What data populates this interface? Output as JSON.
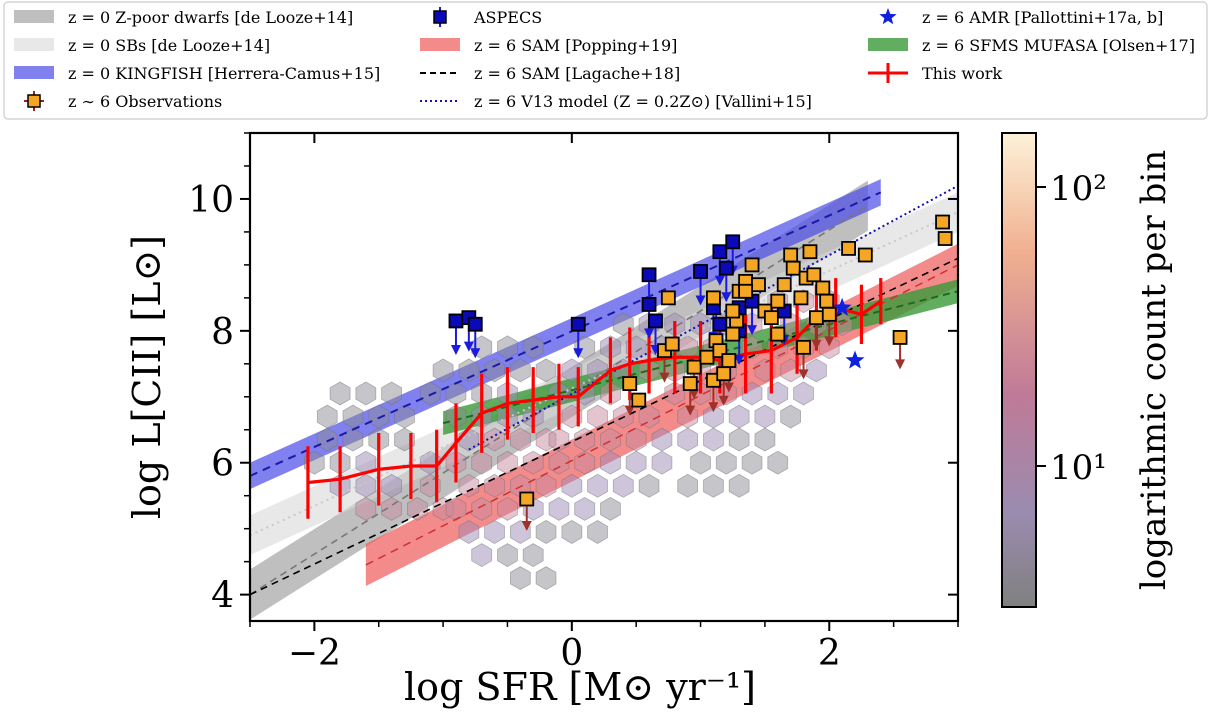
{
  "chart_data": {
    "type": "scatter",
    "xlabel": "log SFR [M⊙ yr⁻¹]",
    "ylabel": "log L[CII] [L⊙]",
    "colorbar_label": "logarithmic count per bin",
    "colorbar_ticks": [
      "10²",
      "10¹"
    ],
    "xlim": [
      -2.5,
      3.0
    ],
    "ylim": [
      3.6,
      11.0
    ],
    "xticks": [
      -2,
      0,
      2
    ],
    "xtick_labels": [
      "−2",
      "0",
      "2"
    ],
    "yticks": [
      4,
      6,
      8,
      10
    ],
    "ytick_labels": [
      "4",
      "6",
      "8",
      "10"
    ],
    "colors": {
      "kingfish": "#4a4ae8",
      "popping": "#f05a5a",
      "olsen": "#3a9a3a",
      "this_work": "#ff0000",
      "observations": "#f5a623",
      "aspecs": "#0a0ab8",
      "amr": "#1020e0",
      "uplimit": "#a0302a"
    },
    "legend": {
      "placement": "top",
      "entries": [
        {
          "key": "dwarfs",
          "label": "z = 0 Z-poor dwarfs [de Looze+14]"
        },
        {
          "key": "sbs",
          "label": "z = 0 SBs [de Looze+14]"
        },
        {
          "key": "kingfish",
          "label": "z = 0 KINGFISH [Herrera-Camus+15]"
        },
        {
          "key": "observations",
          "label": "z ∼ 6 Observations"
        },
        {
          "key": "aspecs",
          "label": "ASPECS"
        },
        {
          "key": "popping",
          "label": "z = 6 SAM [Popping+19]"
        },
        {
          "key": "lagache",
          "label": "z = 6 SAM [Lagache+18]"
        },
        {
          "key": "vallini",
          "label": "z = 6 V13 model (Z = 0.2Z⊙) [Vallini+15]"
        },
        {
          "key": "amr",
          "label": "z = 6 AMR [Pallottini+17a, b]"
        },
        {
          "key": "olsen",
          "label": "z = 6 SFMS MUFASA [Olsen+17]"
        },
        {
          "key": "this_work",
          "label": "This work"
        }
      ]
    },
    "relations": [
      {
        "key": "dwarfs",
        "x": [
          -2.5,
          2.3
        ],
        "y": [
          4.0,
          9.9
        ],
        "sigma": 0.38
      },
      {
        "key": "sbs",
        "x": [
          -2.5,
          3.0
        ],
        "y": [
          4.9,
          9.8
        ],
        "sigma": 0.3
      },
      {
        "key": "kingfish",
        "x": [
          -2.5,
          2.4
        ],
        "y": [
          5.8,
          10.1
        ],
        "sigma": 0.2
      },
      {
        "key": "popping",
        "x": [
          -1.6,
          3.0
        ],
        "y": [
          4.45,
          9.0
        ],
        "sigma": 0.32
      },
      {
        "key": "lagache",
        "x": [
          -2.5,
          3.0
        ],
        "y": [
          4.0,
          9.1
        ]
      },
      {
        "key": "vallini",
        "x": [
          -0.8,
          3.0
        ],
        "y": [
          6.2,
          10.2
        ]
      },
      {
        "key": "olsen",
        "x": [
          -1.0,
          3.0
        ],
        "y": [
          6.6,
          8.6
        ],
        "sigma": 0.18
      }
    ],
    "this_work": {
      "x": [
        -2.05,
        -1.8,
        -1.5,
        -1.25,
        -1.05,
        -0.9,
        -0.7,
        -0.5,
        -0.3,
        -0.1,
        0.05,
        0.3,
        0.45,
        0.6,
        0.8,
        1.0,
        1.15,
        1.35,
        1.55,
        1.75,
        1.9,
        2.05,
        2.25,
        2.4
      ],
      "y": [
        5.7,
        5.75,
        5.9,
        5.95,
        5.95,
        6.3,
        6.75,
        6.9,
        6.95,
        7.0,
        7.0,
        7.4,
        7.5,
        7.55,
        7.6,
        7.6,
        7.55,
        7.65,
        7.7,
        7.9,
        8.2,
        8.35,
        8.25,
        8.45
      ],
      "err": [
        0.55,
        0.5,
        0.55,
        0.5,
        0.55,
        0.6,
        0.6,
        0.55,
        0.5,
        0.5,
        0.45,
        0.5,
        0.55,
        0.5,
        0.55,
        0.55,
        0.5,
        0.6,
        0.65,
        0.55,
        0.5,
        0.45,
        0.45,
        0.35
      ]
    },
    "observations": [
      {
        "x": 0.45,
        "y": 7.2,
        "up": true
      },
      {
        "x": 0.52,
        "y": 6.95
      },
      {
        "x": 0.72,
        "y": 7.7,
        "up": true
      },
      {
        "x": 0.78,
        "y": 7.8
      },
      {
        "x": 0.75,
        "y": 8.5
      },
      {
        "x": 0.92,
        "y": 7.2,
        "up": true
      },
      {
        "x": 0.95,
        "y": 7.45,
        "up": true
      },
      {
        "x": 1.05,
        "y": 7.6
      },
      {
        "x": 1.1,
        "y": 7.25,
        "up": true
      },
      {
        "x": 1.12,
        "y": 7.85
      },
      {
        "x": 1.15,
        "y": 7.7,
        "up": true
      },
      {
        "x": 1.18,
        "y": 7.35,
        "up": true
      },
      {
        "x": 1.22,
        "y": 7.55,
        "up": true
      },
      {
        "x": 1.25,
        "y": 7.95
      },
      {
        "x": 1.28,
        "y": 8.15
      },
      {
        "x": 1.3,
        "y": 8.6
      },
      {
        "x": 1.35,
        "y": 8.75
      },
      {
        "x": 1.4,
        "y": 9.0
      },
      {
        "x": 1.45,
        "y": 8.7
      },
      {
        "x": 1.5,
        "y": 8.3
      },
      {
        "x": 1.55,
        "y": 8.2
      },
      {
        "x": 1.6,
        "y": 8.45
      },
      {
        "x": 1.65,
        "y": 8.7
      },
      {
        "x": 1.7,
        "y": 9.15
      },
      {
        "x": 1.72,
        "y": 8.95
      },
      {
        "x": 1.78,
        "y": 8.5
      },
      {
        "x": 1.82,
        "y": 8.8
      },
      {
        "x": 1.85,
        "y": 9.2
      },
      {
        "x": 1.88,
        "y": 8.85
      },
      {
        "x": 1.95,
        "y": 8.65
      },
      {
        "x": 1.98,
        "y": 8.45
      },
      {
        "x": 1.8,
        "y": 7.75,
        "up": true
      },
      {
        "x": 1.9,
        "y": 8.2,
        "up": true
      },
      {
        "x": 2.0,
        "y": 8.25,
        "up": true
      },
      {
        "x": 2.15,
        "y": 9.25
      },
      {
        "x": 2.28,
        "y": 9.15
      },
      {
        "x": 2.88,
        "y": 9.65
      },
      {
        "x": 2.9,
        "y": 9.4
      },
      {
        "x": 2.55,
        "y": 7.9,
        "up": true
      },
      {
        "x": -0.35,
        "y": 5.45,
        "up": true
      },
      {
        "x": 1.35,
        "y": 8.6
      },
      {
        "x": 1.1,
        "y": 8.5
      },
      {
        "x": 1.6,
        "y": 7.95
      },
      {
        "x": 1.25,
        "y": 8.3
      }
    ],
    "aspecs": [
      {
        "x": -0.9,
        "y": 8.15
      },
      {
        "x": -0.8,
        "y": 8.2
      },
      {
        "x": -0.75,
        "y": 8.1
      },
      {
        "x": 0.05,
        "y": 8.1
      },
      {
        "x": 0.6,
        "y": 8.85
      },
      {
        "x": 0.6,
        "y": 8.4
      },
      {
        "x": 0.65,
        "y": 8.15
      },
      {
        "x": 1.0,
        "y": 8.9
      },
      {
        "x": 1.1,
        "y": 8.35
      },
      {
        "x": 1.15,
        "y": 9.2
      },
      {
        "x": 1.25,
        "y": 9.35
      },
      {
        "x": 1.2,
        "y": 8.95
      },
      {
        "x": 1.3,
        "y": 8.35
      },
      {
        "x": 1.4,
        "y": 8.45
      },
      {
        "x": 1.65,
        "y": 8.3
      },
      {
        "x": 1.15,
        "y": 8.1
      },
      {
        "x": 1.3,
        "y": 8.0
      }
    ],
    "amr": [
      {
        "x": 2.1,
        "y": 8.35
      },
      {
        "x": 2.2,
        "y": 7.55
      }
    ],
    "hexbins": [
      {
        "x": -2.0,
        "y": 6.0
      },
      {
        "x": -1.8,
        "y": 6.0
      },
      {
        "x": -1.6,
        "y": 6.0
      },
      {
        "x": -1.9,
        "y": 6.35
      },
      {
        "x": -1.7,
        "y": 6.35
      },
      {
        "x": -1.5,
        "y": 6.35
      },
      {
        "x": -1.3,
        "y": 6.35
      },
      {
        "x": -1.9,
        "y": 6.7
      },
      {
        "x": -1.7,
        "y": 6.7
      },
      {
        "x": -1.5,
        "y": 6.7
      },
      {
        "x": -1.3,
        "y": 6.7
      },
      {
        "x": -1.8,
        "y": 5.65
      },
      {
        "x": -1.6,
        "y": 5.65
      },
      {
        "x": -1.4,
        "y": 5.65
      },
      {
        "x": -1.8,
        "y": 7.05
      },
      {
        "x": -1.6,
        "y": 7.05
      },
      {
        "x": -1.4,
        "y": 7.05
      },
      {
        "x": -1.4,
        "y": 5.3
      },
      {
        "x": -1.2,
        "y": 5.3
      },
      {
        "x": -1.6,
        "y": 5.3
      },
      {
        "x": -1.1,
        "y": 6.0
      },
      {
        "x": -1.1,
        "y": 5.65
      },
      {
        "x": -1.0,
        "y": 5.3
      },
      {
        "x": -1.1,
        "y": 7.05
      },
      {
        "x": -1.0,
        "y": 7.4
      },
      {
        "x": -0.8,
        "y": 7.4
      },
      {
        "x": -0.9,
        "y": 7.05
      },
      {
        "x": -0.7,
        "y": 7.05
      },
      {
        "x": -0.5,
        "y": 7.05
      },
      {
        "x": -0.6,
        "y": 7.4
      },
      {
        "x": -0.4,
        "y": 7.4
      },
      {
        "x": -0.2,
        "y": 7.4
      },
      {
        "x": -0.5,
        "y": 7.75
      },
      {
        "x": -0.3,
        "y": 7.75
      },
      {
        "x": -0.7,
        "y": 7.75
      },
      {
        "x": -0.9,
        "y": 6.7
      },
      {
        "x": -0.7,
        "y": 6.7
      },
      {
        "x": -0.5,
        "y": 6.7
      },
      {
        "x": -0.3,
        "y": 6.7
      },
      {
        "x": -0.8,
        "y": 6.35
      },
      {
        "x": -0.6,
        "y": 6.35
      },
      {
        "x": -0.4,
        "y": 6.35
      },
      {
        "x": -0.2,
        "y": 6.35
      },
      {
        "x": -0.9,
        "y": 6.0
      },
      {
        "x": -0.7,
        "y": 6.0
      },
      {
        "x": -0.5,
        "y": 6.0
      },
      {
        "x": -0.3,
        "y": 6.0
      },
      {
        "x": -0.8,
        "y": 5.65
      },
      {
        "x": -0.6,
        "y": 5.65
      },
      {
        "x": -0.4,
        "y": 5.65
      },
      {
        "x": -0.9,
        "y": 5.3
      },
      {
        "x": -0.7,
        "y": 5.3
      },
      {
        "x": -0.5,
        "y": 5.3
      },
      {
        "x": -0.8,
        "y": 4.95
      },
      {
        "x": -0.6,
        "y": 4.95
      },
      {
        "x": -0.4,
        "y": 4.95
      },
      {
        "x": -0.7,
        "y": 4.6
      },
      {
        "x": -0.5,
        "y": 4.6
      },
      {
        "x": -0.3,
        "y": 4.6
      },
      {
        "x": -0.4,
        "y": 4.25
      },
      {
        "x": -0.2,
        "y": 4.25
      },
      {
        "x": -0.1,
        "y": 7.05
      },
      {
        "x": 0.1,
        "y": 7.05
      },
      {
        "x": 0.3,
        "y": 7.05
      },
      {
        "x": 0.0,
        "y": 6.7
      },
      {
        "x": 0.2,
        "y": 6.7
      },
      {
        "x": 0.4,
        "y": 6.7
      },
      {
        "x": 0.6,
        "y": 6.7
      },
      {
        "x": -0.1,
        "y": 6.35
      },
      {
        "x": 0.1,
        "y": 6.35
      },
      {
        "x": 0.3,
        "y": 6.35
      },
      {
        "x": 0.5,
        "y": 6.35
      },
      {
        "x": 0.7,
        "y": 6.35
      },
      {
        "x": -0.1,
        "y": 6.0
      },
      {
        "x": 0.1,
        "y": 6.0
      },
      {
        "x": 0.3,
        "y": 6.0
      },
      {
        "x": 0.5,
        "y": 6.0
      },
      {
        "x": 0.7,
        "y": 6.0
      },
      {
        "x": -0.2,
        "y": 5.65
      },
      {
        "x": 0.0,
        "y": 5.65
      },
      {
        "x": 0.2,
        "y": 5.65
      },
      {
        "x": 0.4,
        "y": 5.65
      },
      {
        "x": 0.6,
        "y": 5.65
      },
      {
        "x": -0.3,
        "y": 5.3
      },
      {
        "x": -0.1,
        "y": 5.3
      },
      {
        "x": 0.1,
        "y": 5.3
      },
      {
        "x": 0.3,
        "y": 5.3
      },
      {
        "x": -0.2,
        "y": 4.95
      },
      {
        "x": 0.0,
        "y": 4.95
      },
      {
        "x": 0.2,
        "y": 4.95
      },
      {
        "x": 0.0,
        "y": 7.4
      },
      {
        "x": 0.2,
        "y": 7.4
      },
      {
        "x": 0.4,
        "y": 7.4
      },
      {
        "x": 0.3,
        "y": 7.75
      },
      {
        "x": 0.5,
        "y": 7.75
      },
      {
        "x": 0.1,
        "y": 7.75
      },
      {
        "x": 0.6,
        "y": 7.4
      },
      {
        "x": 0.8,
        "y": 7.4
      },
      {
        "x": 1.0,
        "y": 7.4
      },
      {
        "x": 1.2,
        "y": 7.4
      },
      {
        "x": 0.8,
        "y": 7.05
      },
      {
        "x": 1.0,
        "y": 7.05
      },
      {
        "x": 1.2,
        "y": 7.05
      },
      {
        "x": 1.4,
        "y": 7.05
      },
      {
        "x": 0.9,
        "y": 6.7
      },
      {
        "x": 1.1,
        "y": 6.7
      },
      {
        "x": 1.3,
        "y": 6.7
      },
      {
        "x": 1.5,
        "y": 6.7
      },
      {
        "x": 0.9,
        "y": 6.35
      },
      {
        "x": 1.1,
        "y": 6.35
      },
      {
        "x": 1.3,
        "y": 6.35
      },
      {
        "x": 1.5,
        "y": 6.35
      },
      {
        "x": 1.0,
        "y": 6.0
      },
      {
        "x": 1.2,
        "y": 6.0
      },
      {
        "x": 1.4,
        "y": 6.0
      },
      {
        "x": 1.6,
        "y": 6.0
      },
      {
        "x": 1.1,
        "y": 5.65
      },
      {
        "x": 1.3,
        "y": 5.65
      },
      {
        "x": 0.9,
        "y": 5.65
      },
      {
        "x": 0.7,
        "y": 7.75
      },
      {
        "x": 0.9,
        "y": 7.75
      },
      {
        "x": 1.1,
        "y": 7.75
      },
      {
        "x": 0.4,
        "y": 8.1
      },
      {
        "x": 0.6,
        "y": 8.1
      },
      {
        "x": 0.8,
        "y": 8.1
      },
      {
        "x": 1.0,
        "y": 8.1
      },
      {
        "x": 1.4,
        "y": 7.75
      },
      {
        "x": 1.6,
        "y": 7.75
      },
      {
        "x": 1.5,
        "y": 7.4
      },
      {
        "x": 1.7,
        "y": 7.4
      },
      {
        "x": 1.6,
        "y": 7.05
      },
      {
        "x": 1.8,
        "y": 7.05
      },
      {
        "x": 1.7,
        "y": 6.7
      },
      {
        "x": 1.9,
        "y": 7.4
      },
      {
        "x": 1.8,
        "y": 7.75
      },
      {
        "x": 2.0,
        "y": 7.75
      },
      {
        "x": 1.7,
        "y": 8.1
      },
      {
        "x": 1.9,
        "y": 8.1
      },
      {
        "x": 2.0,
        "y": 8.45
      },
      {
        "x": 1.2,
        "y": 8.1
      },
      {
        "x": 1.4,
        "y": 8.1
      },
      {
        "x": 1.6,
        "y": 8.45
      },
      {
        "x": 1.8,
        "y": 8.45
      },
      {
        "x": 2.1,
        "y": 8.1
      }
    ]
  }
}
